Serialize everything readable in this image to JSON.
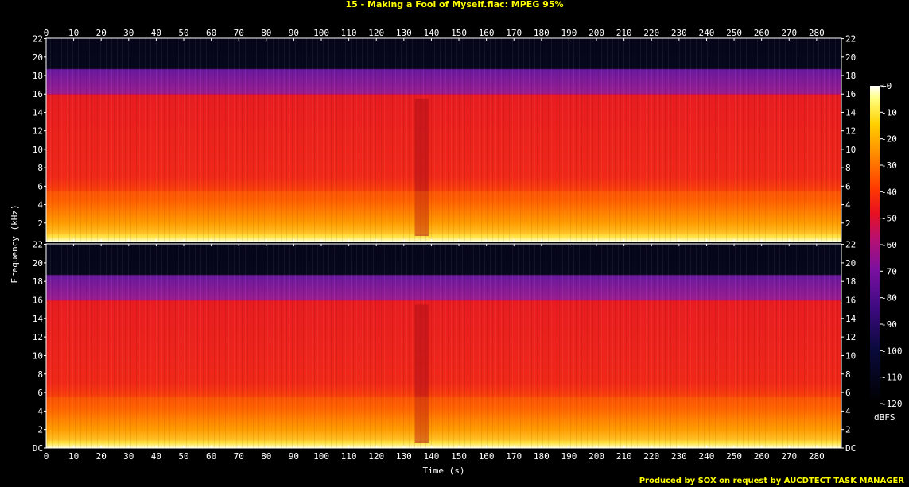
{
  "title": "15 - Making a Fool of Myself.flac: MPEG 95%",
  "footer": "Produced by SOX on request by AUCDTECT TASK MANAGER",
  "chart_data": {
    "type": "heatmap",
    "title": "15 - Making a Fool of Myself.flac: MPEG 95%",
    "xlabel": "Time (s)",
    "ylabel": "Frequency (kHz)",
    "xlim": [
      0,
      289
    ],
    "ylim": [
      0,
      22.05
    ],
    "x_ticks": [
      0,
      10,
      20,
      30,
      40,
      50,
      60,
      70,
      80,
      90,
      100,
      110,
      120,
      130,
      140,
      150,
      160,
      170,
      180,
      190,
      200,
      210,
      220,
      230,
      240,
      250,
      260,
      270,
      280
    ],
    "y_ticks": [
      {
        "value": 0,
        "label": "DC"
      },
      {
        "value": 2,
        "label": "2"
      },
      {
        "value": 4,
        "label": "4"
      },
      {
        "value": 6,
        "label": "6"
      },
      {
        "value": 8,
        "label": "8"
      },
      {
        "value": 10,
        "label": "10"
      },
      {
        "value": 12,
        "label": "12"
      },
      {
        "value": 14,
        "label": "14"
      },
      {
        "value": 16,
        "label": "16"
      },
      {
        "value": 18,
        "label": "18"
      },
      {
        "value": 20,
        "label": "20"
      },
      {
        "value": 22,
        "label": "22"
      }
    ],
    "channels": 2,
    "lowpass_cutoff_khz": 16,
    "upper_band_edge_khz": 18.7,
    "colorbar": {
      "unit": "dBFS",
      "ticks": [
        "+0",
        "-10",
        "-20",
        "-30",
        "-40",
        "-50",
        "-60",
        "-70",
        "-80",
        "-90",
        "-100",
        "-110",
        "-120"
      ],
      "range": [
        -120,
        0
      ]
    }
  }
}
